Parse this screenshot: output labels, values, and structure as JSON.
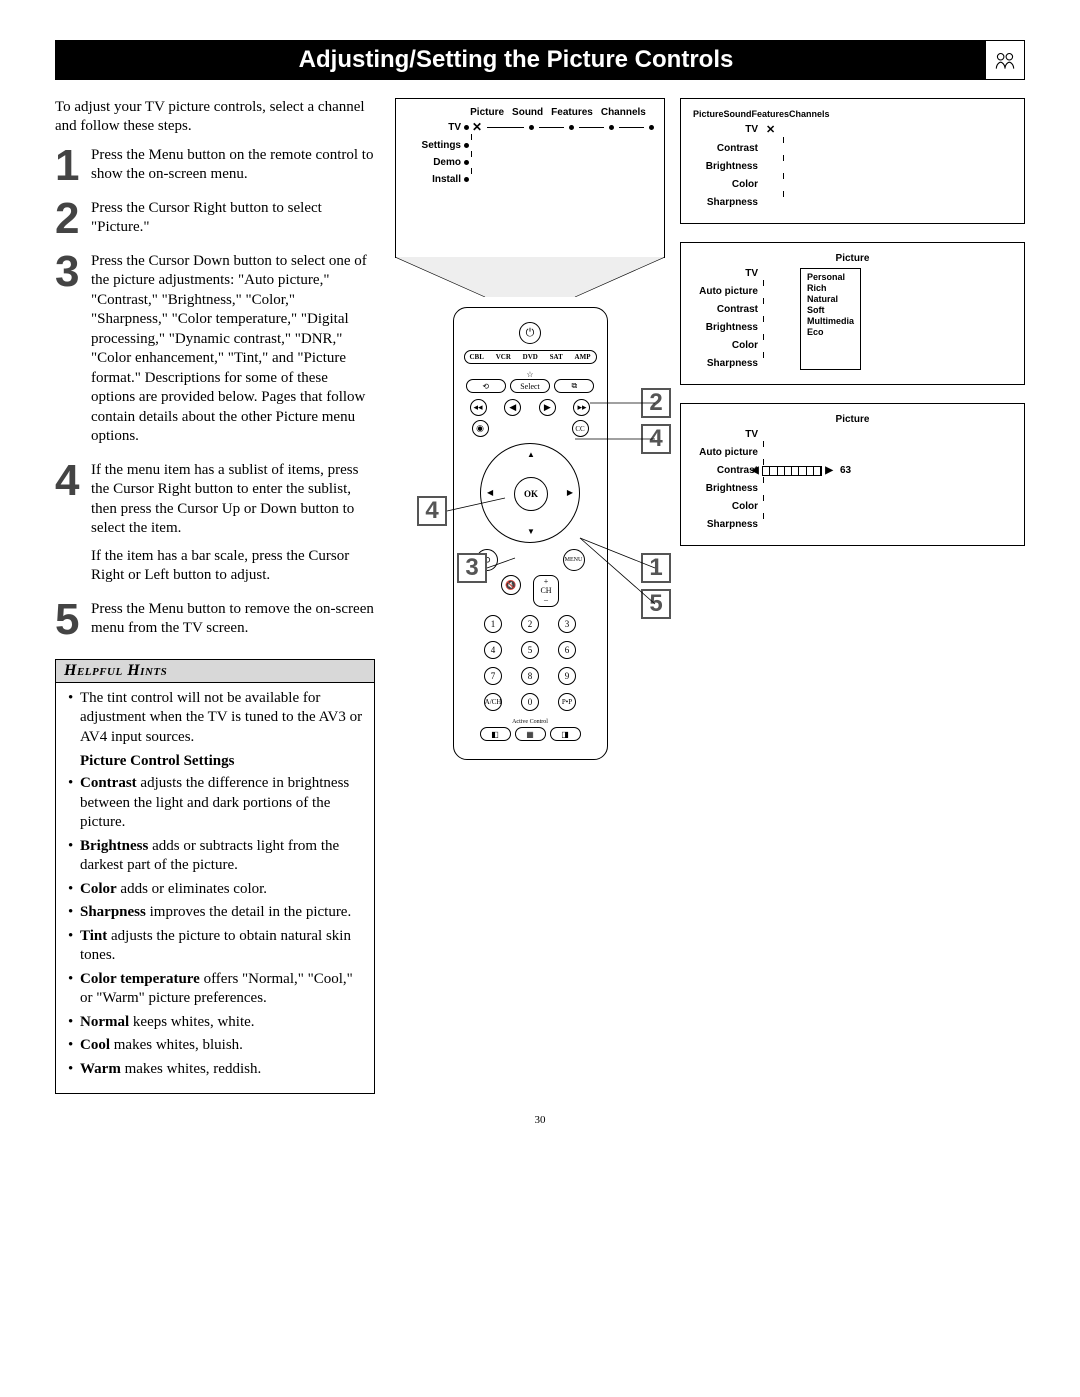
{
  "header": {
    "title": "Adjusting/Setting the Picture Controls"
  },
  "intro": "To adjust your TV picture controls, select a channel and follow these steps.",
  "steps": [
    {
      "num": "1",
      "text": "Press the Menu button on the remote control to show the on-screen menu."
    },
    {
      "num": "2",
      "text": "Press the Cursor Right button to select \"Picture.\""
    },
    {
      "num": "3",
      "text": "Press the Cursor Down button to select one of the picture adjustments: \"Auto picture,\" \"Contrast,\" \"Brightness,\" \"Color,\" \"Sharpness,\" \"Color temperature,\" \"Digital processing,\" \"Dynamic contrast,\" \"DNR,\" \"Color enhancement,\" \"Tint,\" and \"Picture format.\" Descriptions for some of these options are provided below. Pages that follow contain details about the other Picture menu options."
    },
    {
      "num": "4",
      "text": "If the menu item has a sublist of items, press the Cursor Right button to enter the sublist, then press the Cursor Up or Down button to select the item.",
      "extra": "If the item has a bar scale, press the Cursor Right or Left button to adjust."
    },
    {
      "num": "5",
      "text": "Press the Menu button to remove the on-screen menu from the TV screen."
    }
  ],
  "hints": {
    "title": "Helpful Hints",
    "lead_item": "The tint control will not be available for adjustment when the TV is tuned to the AV3 or AV4 input sources.",
    "sub_heading": "Picture Control Settings",
    "items": [
      {
        "bold": "Contrast",
        "text": " adjusts the difference in brightness between the light and dark portions of the picture."
      },
      {
        "bold": "Brightness",
        "text": " adds or subtracts light from the darkest part of the picture."
      },
      {
        "bold": "Color",
        "text": " adds or eliminates color."
      },
      {
        "bold": "Sharpness",
        "text": " improves the detail in the picture."
      },
      {
        "bold": "Tint",
        "text": " adjusts the picture to obtain natural skin tones."
      },
      {
        "bold": "Color temperature",
        "text": " offers \"Normal,\" \"Cool,\" or \"Warm\" picture preferences."
      },
      {
        "bold": "Normal",
        "text": " keeps whites, white."
      },
      {
        "bold": "Cool",
        "text": " makes whites, bluish."
      },
      {
        "bold": "Warm",
        "text": " makes whites, reddish."
      }
    ]
  },
  "menu_tabs": [
    "Picture",
    "Sound",
    "Features",
    "Channels"
  ],
  "screen1_items": [
    "TV",
    "Settings",
    "Demo",
    "Install"
  ],
  "remote": {
    "sources": [
      "CBL",
      "VCR",
      "DVD",
      "SAT",
      "AMP"
    ],
    "select": "Select",
    "ok": "OK",
    "menu": "MENU",
    "ch": "CH",
    "active": "Active Control",
    "cc": "CC",
    "pip": "P•P"
  },
  "osd1_items": [
    "TV",
    "Contrast",
    "Brightness",
    "Color",
    "Sharpness"
  ],
  "osd2": {
    "title": "Picture",
    "items": [
      "TV",
      "Auto picture",
      "Contrast",
      "Brightness",
      "Color",
      "Sharpness"
    ],
    "sublist": [
      "Personal",
      "Rich",
      "Natural",
      "Soft",
      "Multimedia",
      "Eco"
    ]
  },
  "osd3": {
    "title": "Picture",
    "items": [
      "TV",
      "Auto picture",
      "Contrast",
      "Brightness",
      "Color",
      "Sharpness"
    ],
    "slider_value": "63"
  },
  "callouts": {
    "c1": "1",
    "c2": "2",
    "c3": "3",
    "c4a": "4",
    "c4b": "4",
    "c5": "5"
  },
  "page_number": "30"
}
